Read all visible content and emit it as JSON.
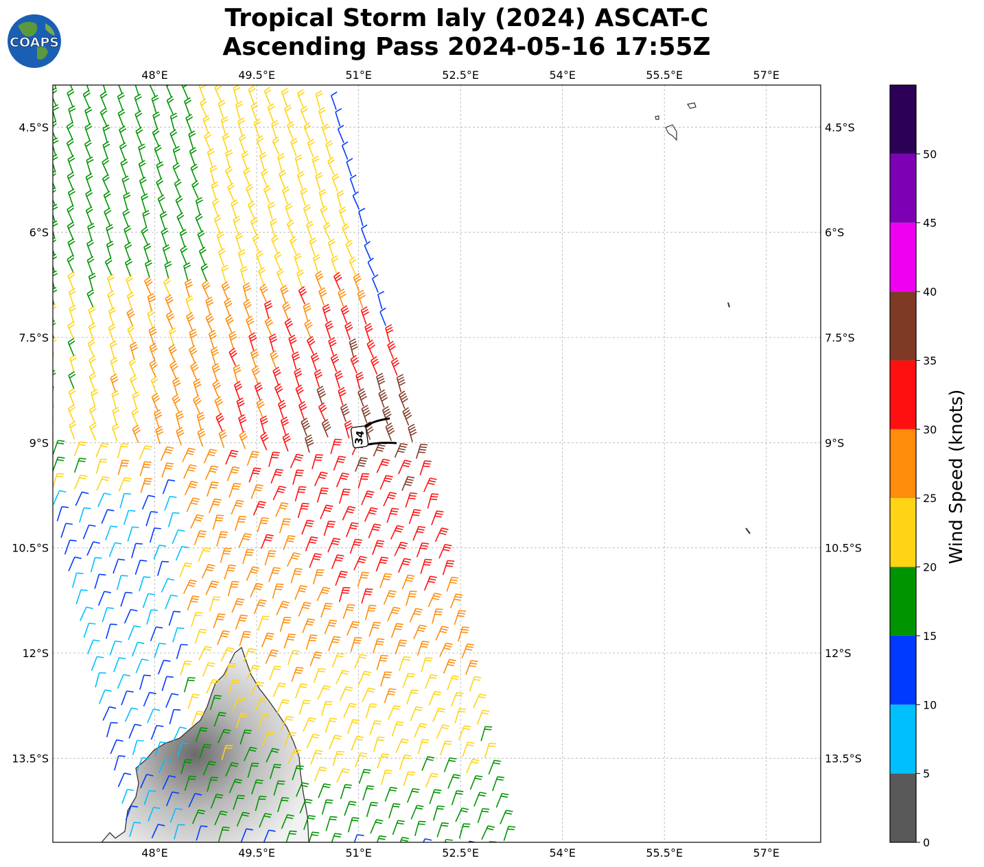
{
  "title": {
    "line1": "Tropical Storm Ialy (2024) ASCAT-C",
    "line2": "Ascending Pass 2024-05-16 17:55Z"
  },
  "logo": {
    "text": "COAPS",
    "icon": "globe-logo"
  },
  "map": {
    "lon_range": [
      46.5,
      57.8
    ],
    "lat_range": [
      -3.9,
      -14.7
    ],
    "lon_ticks": [
      {
        "value": 48.0,
        "label": "48°E"
      },
      {
        "value": 49.5,
        "label": "49.5°E"
      },
      {
        "value": 51.0,
        "label": "51°E"
      },
      {
        "value": 52.5,
        "label": "52.5°E"
      },
      {
        "value": 54.0,
        "label": "54°E"
      },
      {
        "value": 55.5,
        "label": "55.5°E"
      },
      {
        "value": 57.0,
        "label": "57°E"
      }
    ],
    "lat_ticks": [
      {
        "value": -4.5,
        "label": "4.5°S"
      },
      {
        "value": -6.0,
        "label": "6°S"
      },
      {
        "value": -7.5,
        "label": "7.5°S"
      },
      {
        "value": -9.0,
        "label": "9°S"
      },
      {
        "value": -10.5,
        "label": "10.5°S"
      },
      {
        "value": -12.0,
        "label": "12°S"
      },
      {
        "value": -13.5,
        "label": "13.5°S"
      }
    ],
    "gridlines": true,
    "wind_radius_label": "34",
    "swath_note": "ASCAT-C wind barbs colored by speed"
  },
  "colorbar": {
    "label": "Wind Speed (knots)",
    "bins": [
      {
        "min": 0,
        "max": 5,
        "color": "#595959"
      },
      {
        "min": 5,
        "max": 10,
        "color": "#00bfff"
      },
      {
        "min": 10,
        "max": 15,
        "color": "#0039ff"
      },
      {
        "min": 15,
        "max": 20,
        "color": "#009400"
      },
      {
        "min": 20,
        "max": 25,
        "color": "#ffd414"
      },
      {
        "min": 25,
        "max": 30,
        "color": "#ff8c0a"
      },
      {
        "min": 30,
        "max": 35,
        "color": "#ff1010"
      },
      {
        "min": 35,
        "max": 40,
        "color": "#7f3a26"
      },
      {
        "min": 40,
        "max": 45,
        "color": "#f000f0"
      },
      {
        "min": 45,
        "max": 50,
        "color": "#7d00b4"
      },
      {
        "min": 50,
        "max": 55,
        "color": "#2c0056"
      }
    ],
    "tick_labels": [
      "0",
      "5",
      "10",
      "15",
      "20",
      "25",
      "30",
      "35",
      "40",
      "45",
      "50"
    ]
  }
}
